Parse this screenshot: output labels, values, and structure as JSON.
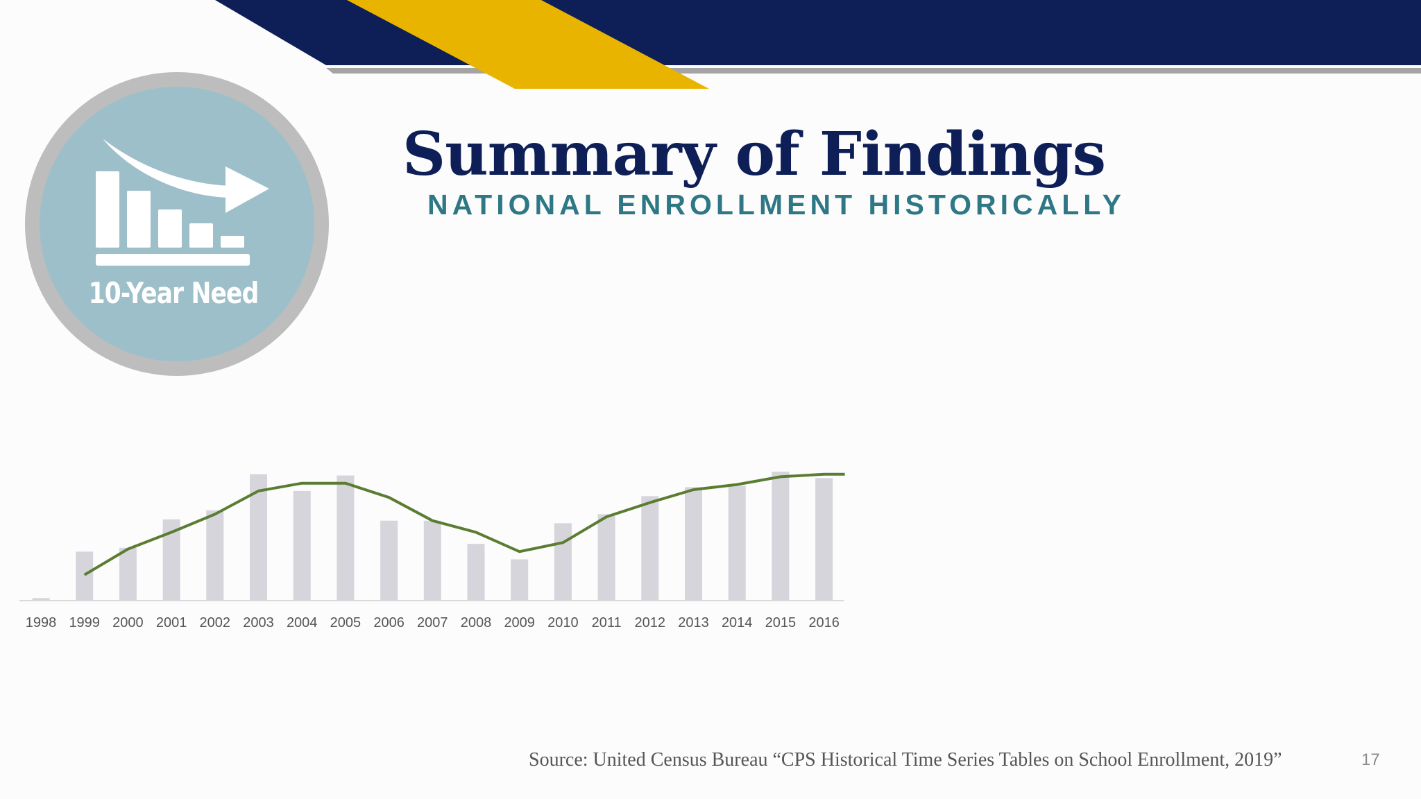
{
  "slide": {
    "title": "Summary of Findings",
    "subtitle": "NATIONAL ENROLLMENT HISTORICALLY",
    "badge_label": "10-Year Need",
    "badge_icon": "declining-bar-chart-arrow-icon",
    "source": "Source: United Census Bureau “CPS Historical Time Series Tables on School Enrollment, 2019”",
    "page_number": "17"
  },
  "colors": {
    "navy": "#0e1f57",
    "gold": "#e8b400",
    "teal_text": "#2e7886",
    "badge_fill": "#9dbfca",
    "badge_ring": "#bdbdbd",
    "bar": "#d6d5dc",
    "line": "#5a7d32"
  },
  "chart_data": {
    "type": "bar",
    "categories": [
      "1998",
      "1999",
      "2000",
      "2001",
      "2002",
      "2003",
      "2004",
      "2005",
      "2006",
      "2007",
      "2008",
      "2009",
      "2010",
      "2011",
      "2012",
      "2013",
      "2014",
      "2015",
      "2016"
    ],
    "series": [
      {
        "type": "bar",
        "values": [
          2,
          38,
          41,
          63,
          70,
          98,
          85,
          97,
          62,
          62,
          44,
          32,
          60,
          67,
          81,
          88,
          89,
          100,
          95
        ]
      },
      {
        "type": "line",
        "values": [
          null,
          20,
          40,
          53,
          67,
          85,
          91,
          91,
          80,
          62,
          53,
          38,
          45,
          65,
          76,
          86,
          90,
          96,
          98
        ]
      }
    ],
    "ylim": [
      0,
      100
    ],
    "legend": "none",
    "grid": false
  }
}
